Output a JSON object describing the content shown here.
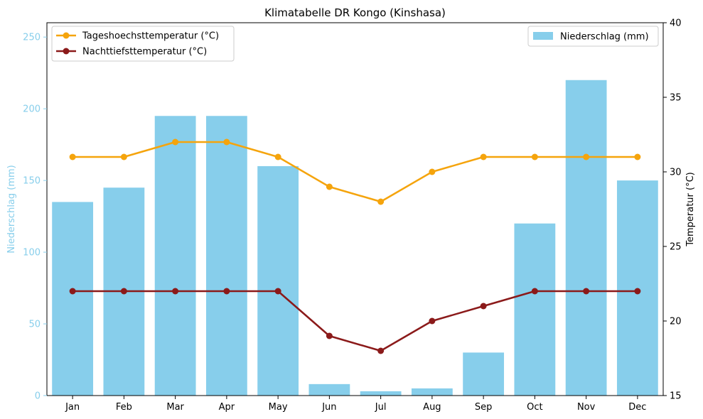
{
  "chart_data": {
    "type": "bar",
    "title": "Klimatabelle DR Kongo (Kinshasa)",
    "categories": [
      "Jan",
      "Feb",
      "Mar",
      "Apr",
      "May",
      "Jun",
      "Jul",
      "Aug",
      "Sep",
      "Oct",
      "Nov",
      "Dec"
    ],
    "left_axis": {
      "label": "Niederschlag (mm)",
      "ylim": [
        0,
        260
      ],
      "ticks": [
        0,
        50,
        100,
        150,
        200,
        250
      ],
      "color": "#87ceeb"
    },
    "right_axis": {
      "label": "Temperatur (°C)",
      "ylim": [
        15,
        40
      ],
      "ticks": [
        15,
        20,
        25,
        30,
        35,
        40
      ],
      "color": "#000000"
    },
    "bars": {
      "name": "Niederschlag (mm)",
      "color": "#87ceeb",
      "axis": "left",
      "values": [
        135,
        145,
        195,
        195,
        160,
        8,
        3,
        5,
        30,
        120,
        220,
        150
      ]
    },
    "series": [
      {
        "name": "Tageshoechsttemperatur (°C)",
        "color": "#f5a40c",
        "axis": "right",
        "values": [
          31,
          31,
          32,
          32,
          31,
          29,
          28,
          30,
          31,
          31,
          31,
          31
        ]
      },
      {
        "name": "Nachttiefsttemperatur (°C)",
        "color": "#8b1a1a",
        "axis": "right",
        "values": [
          22,
          22,
          22,
          22,
          22,
          19,
          18,
          20,
          21,
          22,
          22,
          22
        ]
      }
    ],
    "legend_lines_position": "top-left",
    "legend_bars_position": "top-right",
    "grid": false
  }
}
